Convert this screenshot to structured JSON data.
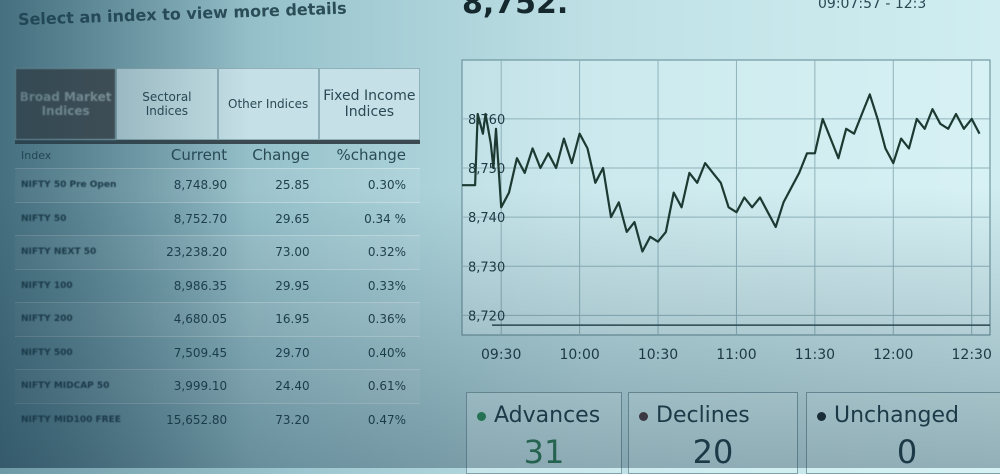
{
  "header": {
    "title": "Select an index to view more details",
    "current_value": "8,752.",
    "timestamp": "09:07:57 - 12:3"
  },
  "tabs": [
    {
      "label": "Broad Market Indices",
      "active": true
    },
    {
      "label": "Sectoral Indices"
    },
    {
      "label": "Other Indices"
    },
    {
      "label": "Fixed Income Indices"
    }
  ],
  "table": {
    "columns": [
      "Index",
      "Current",
      "Change",
      "%change"
    ],
    "rows": [
      [
        "NIFTY 50 Pre Open",
        "8,748.90",
        "25.85",
        "0.30%"
      ],
      [
        "NIFTY 50",
        "8,752.70",
        "29.65",
        "0.34 %"
      ],
      [
        "NIFTY NEXT 50",
        "23,238.20",
        "73.00",
        "0.32%"
      ],
      [
        "NIFTY 100",
        "8,986.35",
        "29.95",
        "0.33%"
      ],
      [
        "NIFTY 200",
        "4,680.05",
        "16.95",
        "0.36%"
      ],
      [
        "NIFTY 500",
        "7,509.45",
        "29.70",
        "0.40%"
      ],
      [
        "NIFTY MIDCAP 50",
        "3,999.10",
        "24.40",
        "0.61%"
      ],
      [
        "NIFTY MID100 FREE",
        "15,652.80",
        "73.20",
        "0.47%"
      ]
    ]
  },
  "chart_data": {
    "type": "line",
    "ylim": [
      8716,
      8772
    ],
    "yticks": [
      "8,720",
      "8,730",
      "8,740",
      "8,750",
      "8,760"
    ],
    "xticks": [
      "09:30",
      "10:00",
      "10:30",
      "11:00",
      "11:30",
      "12:00",
      "12:30"
    ],
    "grid": true,
    "line_color": "#1c3a32",
    "x": [
      "09:15",
      "09:20",
      "09:21",
      "09:23",
      "09:24",
      "09:26",
      "09:27",
      "09:28",
      "09:30",
      "09:33",
      "09:36",
      "09:39",
      "09:42",
      "09:45",
      "09:48",
      "09:51",
      "09:54",
      "09:57",
      "10:00",
      "10:03",
      "10:06",
      "10:09",
      "10:12",
      "10:15",
      "10:18",
      "10:21",
      "10:24",
      "10:27",
      "10:30",
      "10:33",
      "10:36",
      "10:39",
      "10:42",
      "10:45",
      "10:48",
      "10:51",
      "10:54",
      "10:57",
      "11:00",
      "11:03",
      "11:06",
      "11:09",
      "11:12",
      "11:15",
      "11:18",
      "11:21",
      "11:24",
      "11:27",
      "11:30",
      "11:33",
      "11:36",
      "11:39",
      "11:42",
      "11:45",
      "11:48",
      "11:51",
      "11:54",
      "11:57",
      "12:00",
      "12:03",
      "12:06",
      "12:09",
      "12:12",
      "12:15",
      "12:18",
      "12:21",
      "12:24",
      "12:27",
      "12:30",
      "12:33"
    ],
    "y": [
      8746.5,
      8746.5,
      8761,
      8757,
      8761,
      8755,
      8750,
      8758,
      8742,
      8745,
      8752,
      8749,
      8754,
      8750,
      8753,
      8750,
      8756,
      8751,
      8757,
      8754,
      8747,
      8750,
      8740,
      8743,
      8737,
      8739,
      8733,
      8736,
      8735,
      8737,
      8745,
      8742,
      8749,
      8747,
      8751,
      8749,
      8747,
      8742,
      8741,
      8744,
      8742,
      8744,
      8741,
      8738,
      8743,
      8746,
      8749,
      8753,
      8753,
      8760,
      8756,
      8752,
      8758,
      8757,
      8761,
      8765,
      8760,
      8754,
      8751,
      8756,
      8754,
      8760,
      8758,
      8762,
      8759,
      8758,
      8761,
      8758,
      8760,
      8757
    ]
  },
  "stats": [
    {
      "label": "Advances",
      "value": "31",
      "color": "#2e8a5a"
    },
    {
      "label": "Declines",
      "value": "20",
      "color": "#4a3a40"
    },
    {
      "label": "Unchanged",
      "value": "0",
      "color": "#1c2a30"
    }
  ]
}
